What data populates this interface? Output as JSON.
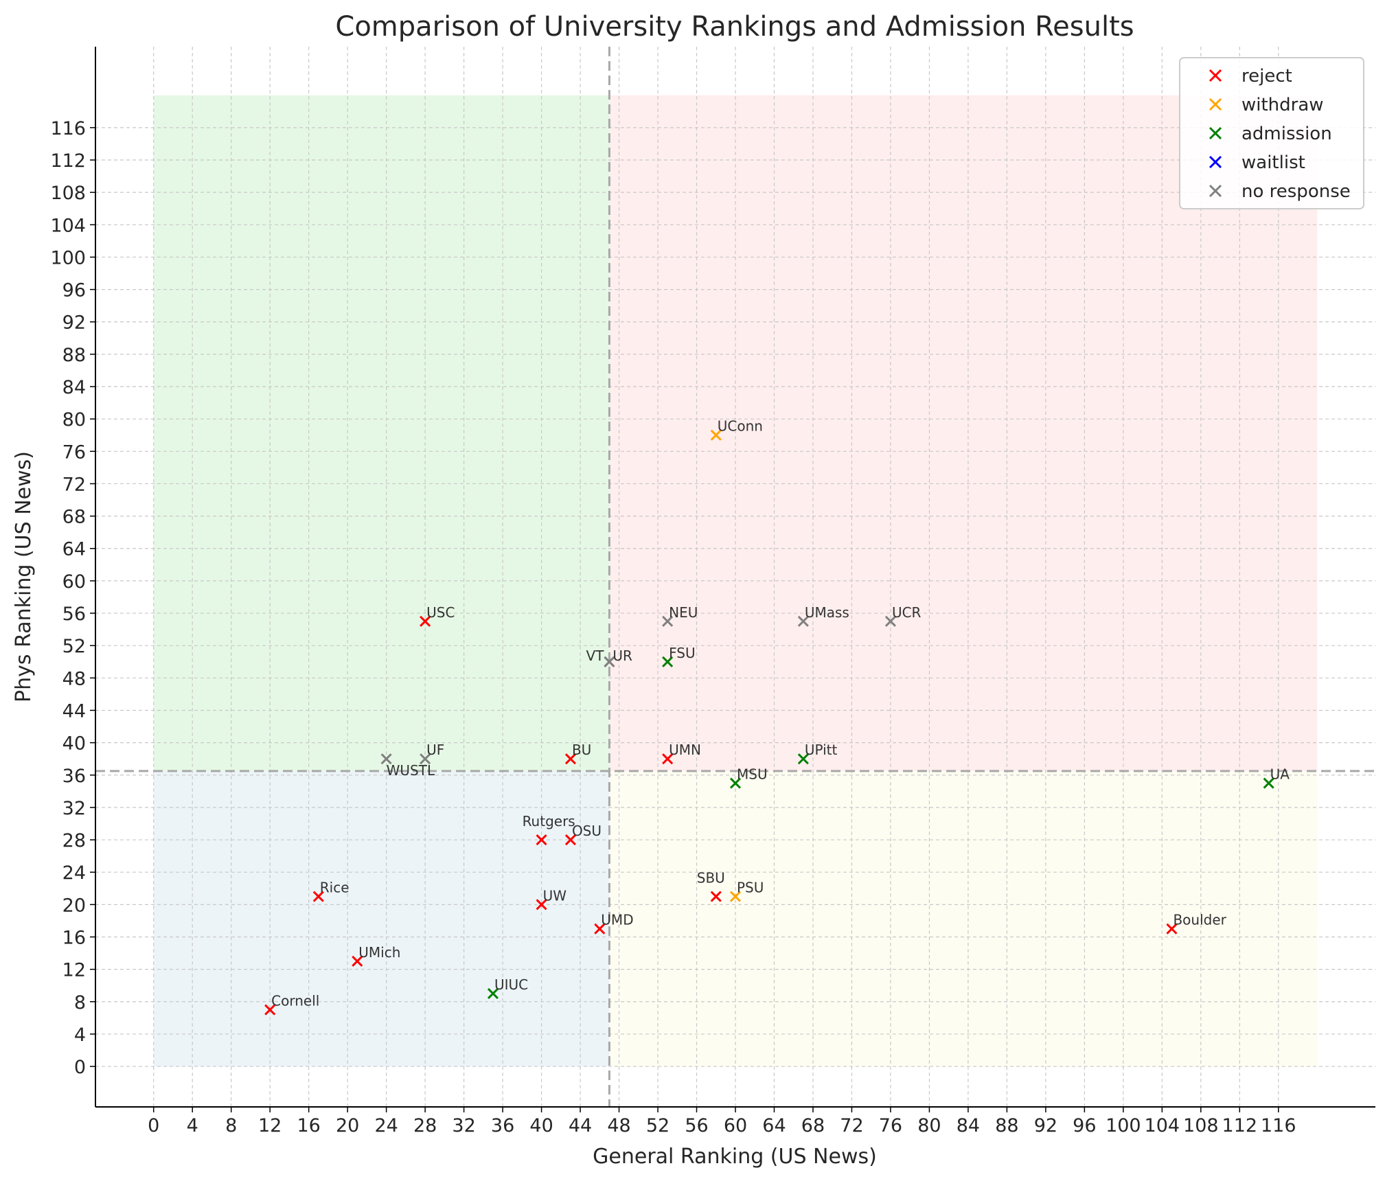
{
  "chart_data": {
    "type": "scatter",
    "title": "Comparison of University Rankings and Admission Results",
    "xlabel": "General Ranking (US News)",
    "ylabel": "Phys Ranking (US News)",
    "xlim": [
      -6,
      126
    ],
    "ylim": [
      -5,
      126
    ],
    "xticks": [
      0,
      4,
      8,
      12,
      16,
      20,
      24,
      28,
      32,
      36,
      40,
      44,
      48,
      52,
      56,
      60,
      64,
      68,
      72,
      76,
      80,
      84,
      88,
      92,
      96,
      100,
      104,
      108,
      112,
      116
    ],
    "yticks": [
      0,
      4,
      8,
      12,
      16,
      20,
      24,
      28,
      32,
      36,
      40,
      44,
      48,
      52,
      56,
      60,
      64,
      68,
      72,
      76,
      80,
      84,
      88,
      92,
      96,
      100,
      104,
      108,
      112,
      116
    ],
    "grid": true,
    "legend_position": "top-right",
    "threshold_x": 47,
    "threshold_y": 36.5,
    "regions": [
      {
        "x": [
          0,
          47
        ],
        "y": [
          36.5,
          120
        ],
        "color": "#e5f8e5"
      },
      {
        "x": [
          47,
          120
        ],
        "y": [
          36.5,
          120
        ],
        "color": "#ffeeee"
      },
      {
        "x": [
          0,
          47
        ],
        "y": [
          0,
          36.5
        ],
        "color": "#ecf4f8"
      },
      {
        "x": [
          47,
          120
        ],
        "y": [
          0,
          36.5
        ],
        "color": "#fefdf2"
      }
    ],
    "series": [
      {
        "name": "reject",
        "color": "#ff0000",
        "points": [
          {
            "label": "USC",
            "x": 28,
            "y": 55
          },
          {
            "label": "BU",
            "x": 43,
            "y": 38
          },
          {
            "label": "UMN",
            "x": 53,
            "y": 38
          },
          {
            "label": "Rutgers",
            "x": 40,
            "y": 28
          },
          {
            "label": "OSU",
            "x": 43,
            "y": 28
          },
          {
            "label": "Rice",
            "x": 17,
            "y": 21
          },
          {
            "label": "UW",
            "x": 40,
            "y": 20
          },
          {
            "label": "UMD",
            "x": 46,
            "y": 17
          },
          {
            "label": "UMich",
            "x": 21,
            "y": 13
          },
          {
            "label": "Cornell",
            "x": 12,
            "y": 7
          },
          {
            "label": "SBU",
            "x": 58,
            "y": 21
          },
          {
            "label": "Boulder",
            "x": 105,
            "y": 17
          }
        ]
      },
      {
        "name": "withdraw",
        "color": "#ffa500",
        "points": [
          {
            "label": "UConn",
            "x": 58,
            "y": 78
          },
          {
            "label": "PSU",
            "x": 60,
            "y": 21
          }
        ]
      },
      {
        "name": "admission",
        "color": "#008000",
        "points": [
          {
            "label": "FSU",
            "x": 53,
            "y": 50
          },
          {
            "label": "UPitt",
            "x": 67,
            "y": 38
          },
          {
            "label": "MSU",
            "x": 60,
            "y": 35
          },
          {
            "label": "UA",
            "x": 115,
            "y": 35
          },
          {
            "label": "UIUC",
            "x": 35,
            "y": 9
          }
        ]
      },
      {
        "name": "waitlist",
        "color": "#0000ff",
        "points": []
      },
      {
        "name": "no response",
        "color": "#808080",
        "points": [
          {
            "label": "NEU",
            "x": 53,
            "y": 55
          },
          {
            "label": "UMass",
            "x": 67,
            "y": 55
          },
          {
            "label": "UCR",
            "x": 76,
            "y": 55
          },
          {
            "label": "VT",
            "x": 47,
            "y": 50
          },
          {
            "label": "UR",
            "x": 47,
            "y": 50
          },
          {
            "label": "WUSTL",
            "x": 24,
            "y": 38
          },
          {
            "label": "UF",
            "x": 28,
            "y": 38
          }
        ]
      }
    ]
  }
}
